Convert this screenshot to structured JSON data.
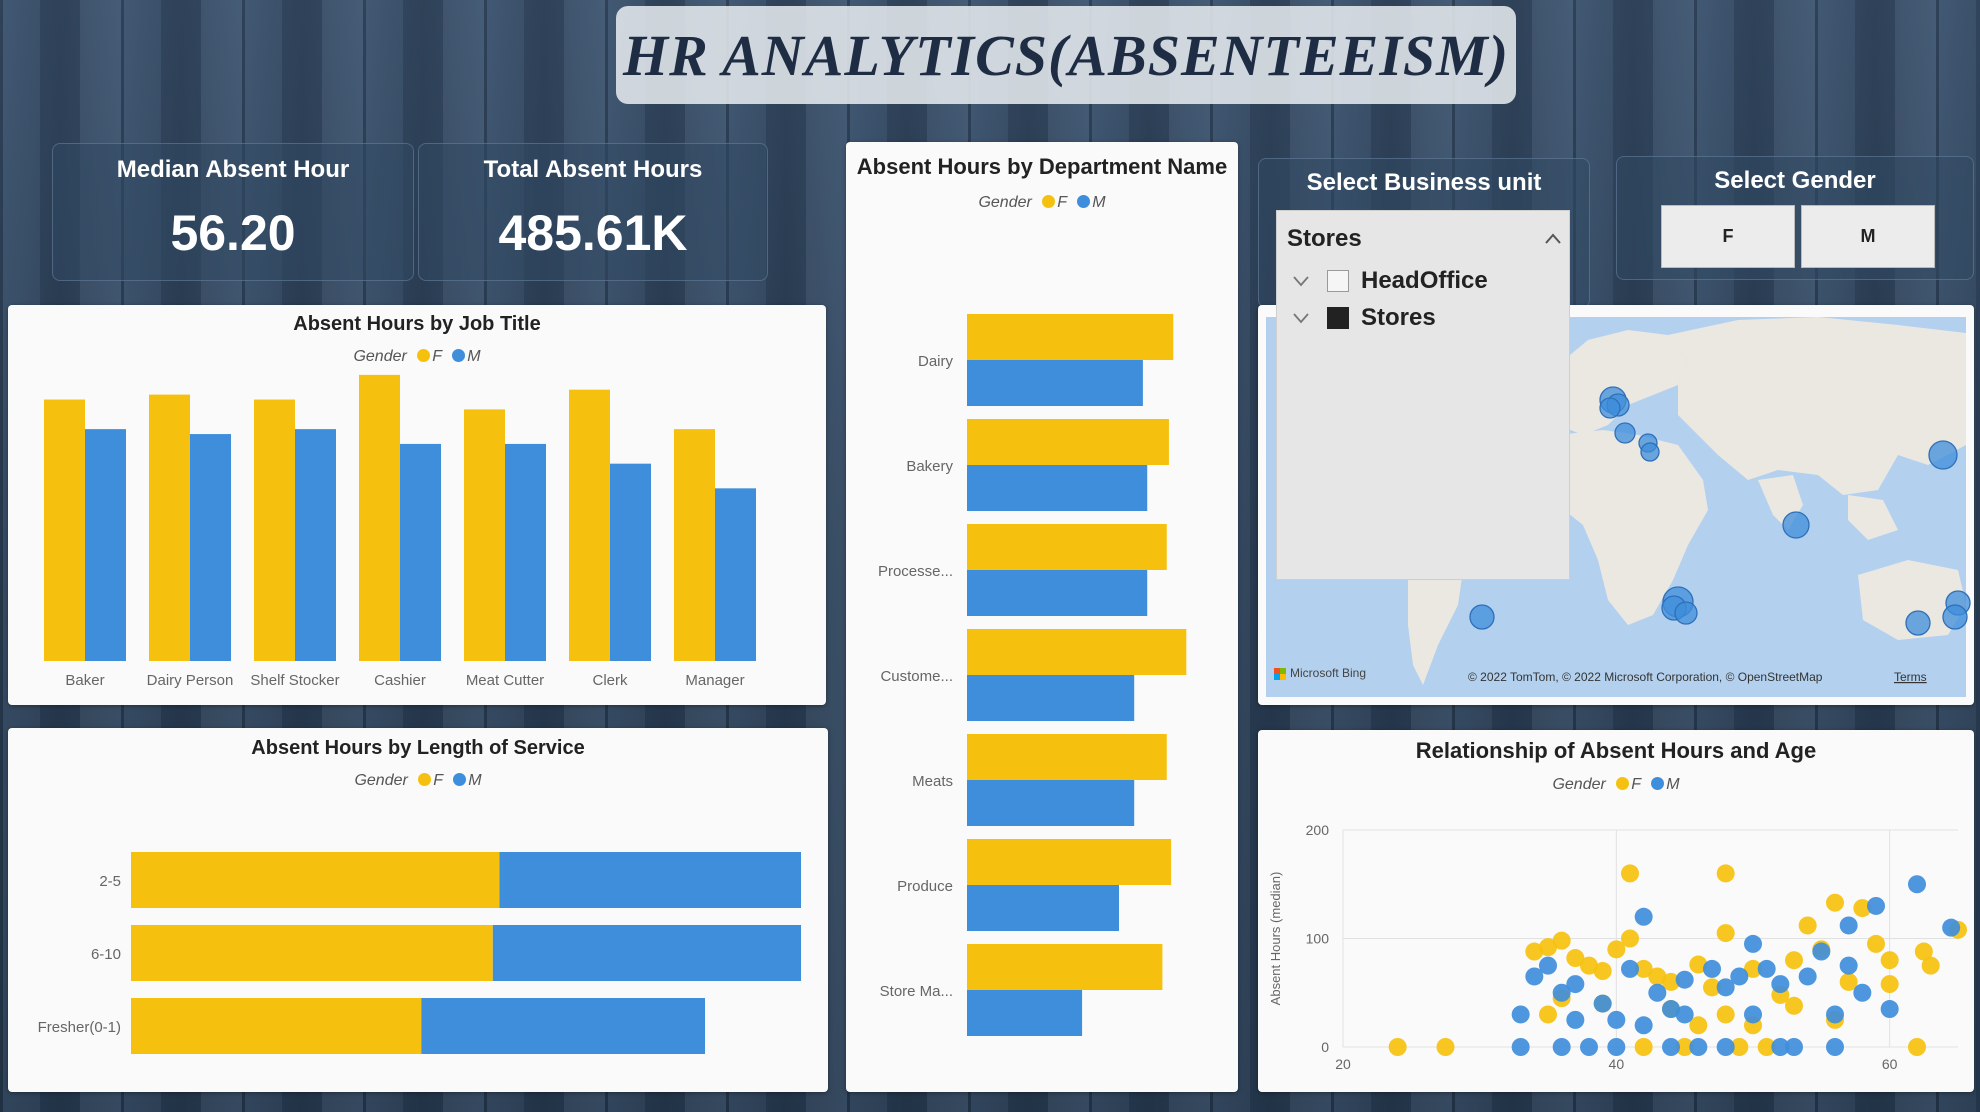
{
  "title": "HR ANALYTICS(ABSENTEEISM)",
  "kpis": {
    "median": {
      "label": "Median Absent Hour",
      "value": "56.20"
    },
    "total": {
      "label": "Total Absent Hours",
      "value": "485.61K"
    }
  },
  "colors": {
    "F": "#f6c10e",
    "M": "#3f8edb"
  },
  "legend": {
    "title": "Gender",
    "f": "F",
    "m": "M"
  },
  "business_unit": {
    "label": "Select Business unit",
    "selected": "Stores",
    "options": [
      {
        "label": "HeadOffice",
        "checked": false
      },
      {
        "label": "Stores",
        "checked": true
      }
    ]
  },
  "gender_select": {
    "label": "Select Gender",
    "options": [
      "F",
      "M"
    ]
  },
  "map": {
    "bing_label": "Microsoft Bing",
    "copyright": "© 2022 TomTom, © 2022 Microsoft Corporation, © OpenStreetMap",
    "terms": "Terms",
    "store_count": 15
  },
  "chart_data": [
    {
      "id": "job_title",
      "type": "bar",
      "title": "Absent Hours by Job Title",
      "categories": [
        "Baker",
        "Dairy Person",
        "Shelf Stocker",
        "Cashier",
        "Meat Cutter",
        "Clerk",
        "Manager"
      ],
      "series": [
        {
          "name": "F",
          "values": [
            53,
            54,
            53,
            58,
            51,
            55,
            47
          ]
        },
        {
          "name": "M",
          "values": [
            47,
            46,
            47,
            44,
            44,
            40,
            35
          ]
        }
      ]
    },
    {
      "id": "length_of_service",
      "type": "bar",
      "orientation": "horizontal",
      "stacked": "100%",
      "title": "Absent Hours by Length of Service",
      "categories": [
        "2-5",
        "6-10",
        "Fresher(0-1)"
      ],
      "series": [
        {
          "name": "F",
          "values": [
            55,
            54,
            44
          ]
        },
        {
          "name": "M",
          "values": [
            45,
            46,
            43
          ]
        }
      ]
    },
    {
      "id": "department",
      "type": "bar",
      "orientation": "horizontal",
      "title": "Absent Hours by Department Name",
      "categories": [
        "Dairy",
        "Bakery",
        "Processe...",
        "Custome...",
        "Meats",
        "Produce",
        "Store Ma..."
      ],
      "series": [
        {
          "name": "F",
          "values": [
            95,
            93,
            92,
            101,
            92,
            94,
            90
          ]
        },
        {
          "name": "M",
          "values": [
            81,
            83,
            83,
            77,
            77,
            70,
            53
          ]
        }
      ]
    },
    {
      "id": "age",
      "type": "scatter",
      "title": "Relationship of Absent Hours and Age",
      "ylabel": "Absent Hours (median)",
      "xlim": [
        20,
        65
      ],
      "ylim": [
        0,
        200
      ],
      "x_ticks": [
        20,
        40,
        60
      ],
      "y_ticks": [
        0,
        100,
        200
      ],
      "series": [
        {
          "name": "F",
          "points": [
            [
              24,
              0
            ],
            [
              27.5,
              0
            ],
            [
              34,
              88
            ],
            [
              35,
              92
            ],
            [
              36,
              98
            ],
            [
              37,
              82
            ],
            [
              38,
              75
            ],
            [
              39,
              70
            ],
            [
              40,
              90
            ],
            [
              41,
              100
            ],
            [
              42,
              72
            ],
            [
              43,
              65
            ],
            [
              44,
              60
            ],
            [
              45,
              0
            ],
            [
              46,
              76
            ],
            [
              47,
              55
            ],
            [
              48,
              30
            ],
            [
              49,
              0
            ],
            [
              50,
              72
            ],
            [
              51,
              0
            ],
            [
              52,
              48
            ],
            [
              53,
              38
            ],
            [
              54,
              112
            ],
            [
              55,
              90
            ],
            [
              56,
              133
            ],
            [
              57,
              60
            ],
            [
              58,
              128
            ],
            [
              59,
              95
            ],
            [
              60,
              80
            ],
            [
              62,
              0
            ],
            [
              62.5,
              88
            ],
            [
              63,
              75
            ],
            [
              65,
              108
            ],
            [
              36,
              45
            ],
            [
              39,
              40
            ],
            [
              42,
              0
            ],
            [
              44,
              35
            ],
            [
              46,
              20
            ],
            [
              48,
              105
            ],
            [
              50,
              20
            ],
            [
              53,
              80
            ],
            [
              56,
              25
            ],
            [
              41,
              160
            ],
            [
              48,
              160
            ],
            [
              35,
              30
            ],
            [
              60,
              58
            ]
          ]
        },
        {
          "name": "M",
          "points": [
            [
              33,
              0
            ],
            [
              34,
              65
            ],
            [
              35,
              75
            ],
            [
              36,
              50
            ],
            [
              37,
              58
            ],
            [
              38,
              0
            ],
            [
              39,
              40
            ],
            [
              40,
              25
            ],
            [
              41,
              72
            ],
            [
              42,
              20
            ],
            [
              43,
              50
            ],
            [
              44,
              35
            ],
            [
              45,
              62
            ],
            [
              46,
              0
            ],
            [
              47,
              72
            ],
            [
              48,
              55
            ],
            [
              49,
              65
            ],
            [
              50,
              30
            ],
            [
              51,
              72
            ],
            [
              52,
              58
            ],
            [
              53,
              0
            ],
            [
              54,
              65
            ],
            [
              55,
              88
            ],
            [
              56,
              30
            ],
            [
              57,
              75
            ],
            [
              58,
              50
            ],
            [
              59,
              130
            ],
            [
              60,
              35
            ],
            [
              62,
              150
            ],
            [
              64.5,
              110
            ],
            [
              36,
              0
            ],
            [
              40,
              0
            ],
            [
              44,
              0
            ],
            [
              48,
              0
            ],
            [
              52,
              0
            ],
            [
              56,
              0
            ],
            [
              57,
              112
            ],
            [
              42,
              120
            ],
            [
              33,
              30
            ],
            [
              37,
              25
            ],
            [
              45,
              30
            ],
            [
              50,
              95
            ]
          ]
        }
      ]
    }
  ]
}
